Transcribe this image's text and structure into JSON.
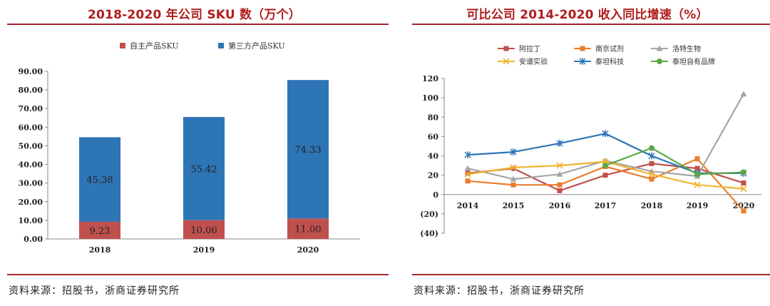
{
  "left": {
    "title": "2018-2020 年公司 SKU 数（万个）",
    "source": "资料来源：招股书，浙商证券研究所",
    "chart_data": {
      "type": "bar",
      "stacked": true,
      "title": "2018-2020 年公司 SKU 数（万个）",
      "categories": [
        "2018",
        "2019",
        "2020"
      ],
      "series": [
        {
          "name": "自主产品SKU",
          "color": "#c0504d",
          "values": [
            9.23,
            10.06,
            11.0
          ],
          "labels": [
            "9.23",
            "10.06",
            "11.00"
          ]
        },
        {
          "name": "第三方产品SKU",
          "color": "#2e75b6",
          "values": [
            45.38,
            55.42,
            74.33
          ],
          "labels": [
            "45.38",
            "55.42",
            "74.33"
          ]
        }
      ],
      "ylim": [
        0,
        90
      ],
      "yticks": [
        "0.00",
        "10.00",
        "20.00",
        "30.00",
        "40.00",
        "50.00",
        "60.00",
        "70.00",
        "80.00",
        "90.00"
      ],
      "legend": "top",
      "grid": false
    }
  },
  "right": {
    "title": "可比公司 2014-2020 收入同比增速（%）",
    "source": "资料来源：招股书，浙商证券研究所",
    "chart_data": {
      "type": "line",
      "title": "可比公司 2014-2020 收入同比增速（%）",
      "x": [
        "2014",
        "2015",
        "2016",
        "2017",
        "2018",
        "2019",
        "2020"
      ],
      "ylim": [
        -40,
        120
      ],
      "yticks": [
        "120",
        "100",
        "80",
        "60",
        "40",
        "20",
        "0",
        "(20)",
        "(40)"
      ],
      "legend": "top",
      "grid": false,
      "series": [
        {
          "name": "阿拉丁",
          "color": "#c0504d",
          "marker": "square",
          "values": [
            22,
            27,
            4,
            20,
            32,
            27,
            12
          ]
        },
        {
          "name": "南京试剂",
          "color": "#e97d2e",
          "marker": "square",
          "values": [
            14,
            10,
            10,
            29,
            16,
            37,
            -17
          ]
        },
        {
          "name": "洛特生物",
          "color": "#a5a5a5",
          "marker": "triangle",
          "values": [
            27,
            16,
            21,
            35,
            24,
            19,
            104
          ]
        },
        {
          "name": "安谱实验",
          "color": "#f2b430",
          "marker": "x",
          "values": [
            21,
            28,
            30,
            34,
            21,
            10,
            6
          ]
        },
        {
          "name": "泰坦科技",
          "color": "#2e75b6",
          "marker": "star",
          "values": [
            41,
            44,
            53,
            63,
            40,
            22,
            22
          ]
        },
        {
          "name": "泰坦自有品牌",
          "color": "#5aa845",
          "marker": "circle",
          "values": [
            null,
            null,
            null,
            30,
            48,
            21,
            23
          ]
        }
      ]
    }
  }
}
